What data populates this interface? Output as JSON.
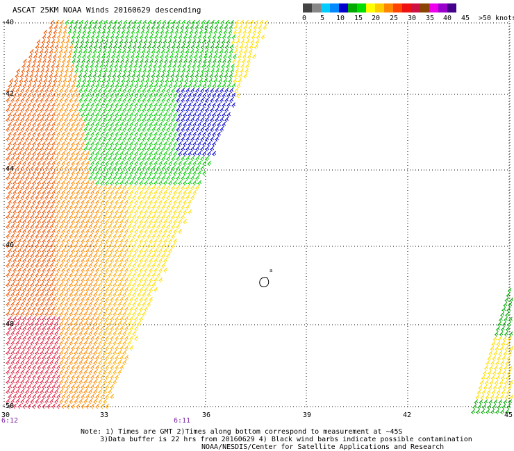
{
  "title": "ASCAT 25KM NOAA Winds 20160629 descending",
  "legend": {
    "labels": [
      "0",
      "5",
      "10",
      "15",
      "20",
      "25",
      "30",
      "35",
      "40",
      "45",
      ">50 knots"
    ],
    "colors": [
      "#444444",
      "#888888",
      "#00ccff",
      "#0088ff",
      "#0000cc",
      "#00aa00",
      "#00dd00",
      "#ffff00",
      "#ffcc00",
      "#ff8800",
      "#ff4400",
      "#ee1111",
      "#cc1144",
      "#884400",
      "#ee00ee",
      "#9900cc",
      "#440088"
    ]
  },
  "map": {
    "lat_labels": [
      "-40",
      "-42",
      "-44",
      "-46",
      "-48",
      "-50"
    ],
    "lon_labels": [
      "30",
      "33",
      "36",
      "39",
      "42",
      "45"
    ],
    "time_labels": [
      "6:12",
      "6:11"
    ],
    "island_label": "a"
  },
  "footer": {
    "line1": "Note: 1) Times are GMT 2)Times along bottom correspond to measurement at ~45S",
    "line2": "3)Data buffer is 22 hrs from 20160629 4) Black wind barbs indicate possible contamination",
    "line3": "NOAA/NESDIS/Center for Satellite Applications and Research"
  }
}
